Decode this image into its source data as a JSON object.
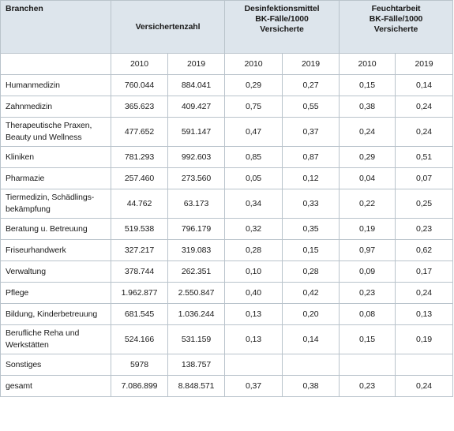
{
  "header": {
    "branchen": "Branchen",
    "versichertenzahl": "Versichertenzahl",
    "desinfektion": "Desinfektionsmittel\nBK-Fälle/1000\nVersicherte",
    "feuchtarbeit": "Feuchtarbeit\nBK-Fälle/1000\nVersicherte",
    "years": [
      "2010",
      "2019",
      "2010",
      "2019",
      "2010",
      "2019"
    ]
  },
  "rows": [
    {
      "name": "Humanmedizin",
      "v2010": "760.044",
      "v2019": "884.041",
      "d2010": "0,29",
      "d2019": "0,27",
      "f2010": "0,15",
      "f2019": "0,14"
    },
    {
      "name": "Zahnmedizin",
      "v2010": "365.623",
      "v2019": "409.427",
      "d2010": "0,75",
      "d2019": "0,55",
      "f2010": "0,38",
      "f2019": "0,24"
    },
    {
      "name": "Therapeutische Praxen,\nBeauty und Wellness",
      "v2010": "477.652",
      "v2019": "591.147",
      "d2010": "0,47",
      "d2019": "0,37",
      "f2010": "0,24",
      "f2019": "0,24"
    },
    {
      "name": "Kliniken",
      "v2010": "781.293",
      "v2019": "992.603",
      "d2010": "0,85",
      "d2019": "0,87",
      "f2010": "0,29",
      "f2019": "0,51"
    },
    {
      "name": "Pharmazie",
      "v2010": "257.460",
      "v2019": "273.560",
      "d2010": "0,05",
      "d2019": "0,12",
      "f2010": "0,04",
      "f2019": "0,07"
    },
    {
      "name": "Tiermedizin, Schädlings-\nbekämpfung",
      "v2010": "44.762",
      "v2019": "63.173",
      "d2010": "0,34",
      "d2019": "0,33",
      "f2010": "0,22",
      "f2019": "0,25"
    },
    {
      "name": "Beratung u. Betreuung",
      "v2010": "519.538",
      "v2019": "796.179",
      "d2010": "0,32",
      "d2019": "0,35",
      "f2010": "0,19",
      "f2019": "0,23"
    },
    {
      "name": "Friseurhandwerk",
      "v2010": "327.217",
      "v2019": "319.083",
      "d2010": "0,28",
      "d2019": "0,15",
      "f2010": "0,97",
      "f2019": "0,62"
    },
    {
      "name": "Verwaltung",
      "v2010": "378.744",
      "v2019": "262.351",
      "d2010": "0,10",
      "d2019": "0,28",
      "f2010": "0,09",
      "f2019": "0,17"
    },
    {
      "name": "Pflege",
      "v2010": "1.962.877",
      "v2019": "2.550.847",
      "d2010": "0,40",
      "d2019": "0,42",
      "f2010": "0,23",
      "f2019": "0,24"
    },
    {
      "name": "Bildung, Kinderbetreuung",
      "v2010": "681.545",
      "v2019": "1.036.244",
      "d2010": "0,13",
      "d2019": "0,20",
      "f2010": "0,08",
      "f2019": "0,13"
    },
    {
      "name": "Berufliche Reha und\nWerkstätten",
      "v2010": "524.166",
      "v2019": "531.159",
      "d2010": "0,13",
      "d2019": "0,14",
      "f2010": "0,15",
      "f2019": "0,19"
    },
    {
      "name": "Sonstiges",
      "v2010": "5978",
      "v2019": "138.757",
      "d2010": "",
      "d2019": "",
      "f2010": "",
      "f2019": ""
    },
    {
      "name": "gesamt",
      "v2010": "7.086.899",
      "v2019": "8.848.571",
      "d2010": "0,37",
      "d2019": "0,38",
      "f2010": "0,23",
      "f2019": "0,24"
    }
  ]
}
